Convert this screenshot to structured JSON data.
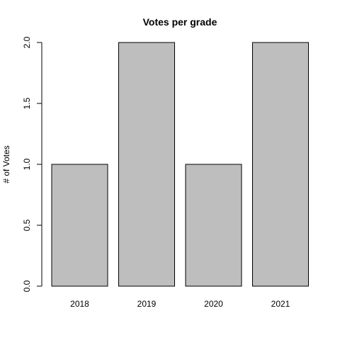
{
  "chart_data": {
    "type": "bar",
    "title": "Votes per grade",
    "xlabel": "",
    "ylabel": "# of Votes",
    "categories": [
      "2018",
      "2019",
      "2020",
      "2021"
    ],
    "values": [
      1,
      2,
      1,
      2
    ],
    "ylim": [
      0,
      2
    ],
    "yticks": [
      "0.0",
      "0.5",
      "1.0",
      "1.5",
      "2.0"
    ],
    "grid": false,
    "bar_color": "#bebebe",
    "stroke_color": "#000000"
  }
}
